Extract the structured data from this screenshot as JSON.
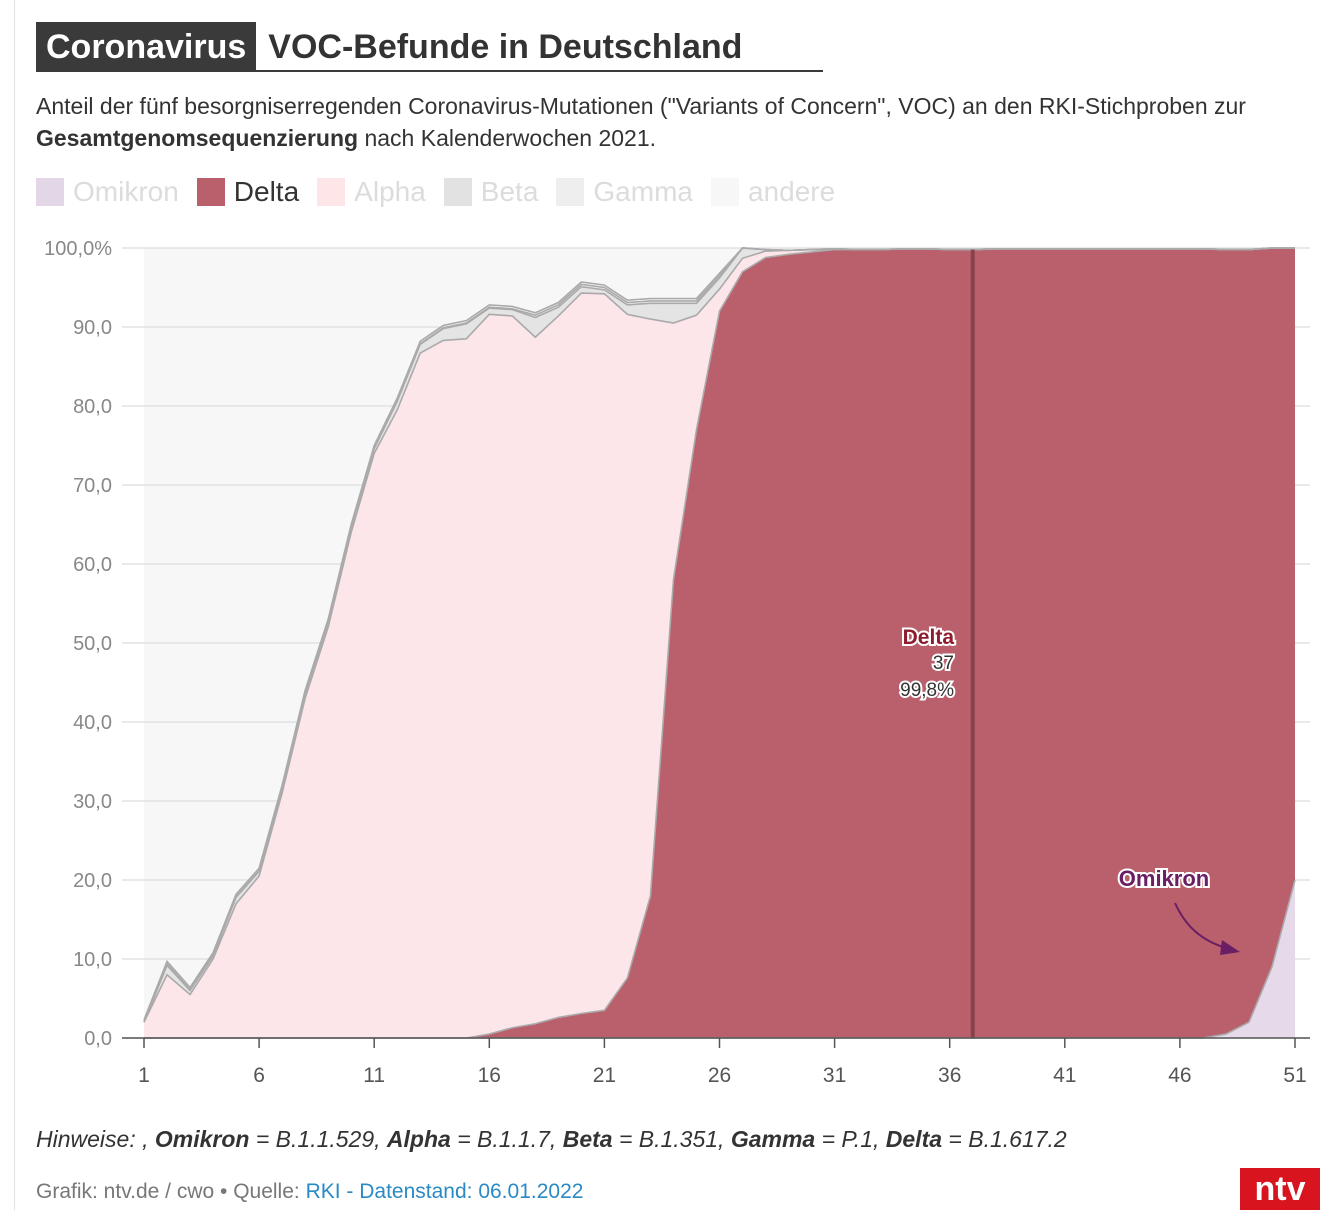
{
  "header": {
    "tag": "Coronavirus",
    "title": "VOC-Befunde in Deutschland",
    "subtitle_part1": "Anteil der fünf besorgniserregenden Coronavirus-Mutationen (\"Variants of Concern\", VOC) an den RKI-Stichproben zur ",
    "subtitle_bold": "Gesamtgenomsequenzierung",
    "subtitle_part2": " nach Kalenderwochen 2021."
  },
  "legend": [
    {
      "label": "Omikron",
      "color": "#e3d6e6",
      "active": false
    },
    {
      "label": "Delta",
      "color": "#b9606c",
      "active": true
    },
    {
      "label": "Alpha",
      "color": "#fde5e8",
      "active": false
    },
    {
      "label": "Beta",
      "color": "#e2e2e2",
      "active": false
    },
    {
      "label": "Gamma",
      "color": "#eeeeee",
      "active": false
    },
    {
      "label": "andere",
      "color": "#f7f7f7",
      "active": false
    }
  ],
  "colors": {
    "delta": "#b9606c",
    "omikron": "#e6d9ea",
    "alpha": "#fde6e9",
    "beta": "#e4e4e4",
    "gamma": "#eeeeee",
    "andere": "#f7f7f7",
    "outline": "#aaaaaa",
    "marker": "#7d3b45",
    "delta_label": "#8c1c2e",
    "omikron_label": "#6a1e64"
  },
  "chart_data": {
    "type": "area",
    "stacked": true,
    "x": [
      1,
      2,
      3,
      4,
      5,
      6,
      7,
      8,
      9,
      10,
      11,
      12,
      13,
      14,
      15,
      16,
      17,
      18,
      19,
      20,
      21,
      22,
      23,
      24,
      25,
      26,
      27,
      28,
      29,
      30,
      31,
      32,
      33,
      34,
      35,
      36,
      37,
      38,
      39,
      40,
      41,
      42,
      43,
      44,
      45,
      46,
      47,
      48,
      49,
      50,
      51
    ],
    "xticks": [
      1,
      6,
      11,
      16,
      21,
      26,
      31,
      36,
      41,
      46,
      51
    ],
    "ylim": [
      0,
      100
    ],
    "yticks": [
      "0,0",
      "10,0",
      "20,0",
      "30,0",
      "40,0",
      "50,0",
      "60,0",
      "70,0",
      "80,0",
      "90,0",
      "100,0%"
    ],
    "series": [
      {
        "name": "Omikron",
        "values": [
          0,
          0,
          0,
          0,
          0,
          0,
          0,
          0,
          0,
          0,
          0,
          0,
          0,
          0,
          0,
          0,
          0,
          0,
          0,
          0,
          0,
          0,
          0,
          0,
          0,
          0,
          0,
          0,
          0,
          0,
          0,
          0,
          0,
          0,
          0,
          0,
          0,
          0,
          0,
          0,
          0,
          0,
          0,
          0,
          0,
          0,
          0,
          0.5,
          2,
          9,
          20
        ]
      },
      {
        "name": "Delta",
        "values": [
          0,
          0,
          0,
          0,
          0,
          0,
          0,
          0,
          0,
          0,
          0,
          0,
          0,
          0,
          0,
          0.5,
          1.3,
          1.8,
          2.6,
          3.1,
          3.5,
          7.6,
          18,
          58,
          77,
          92,
          97,
          98.8,
          99.2,
          99.5,
          99.8,
          99.8,
          99.8,
          99.9,
          99.9,
          99.8,
          99.8,
          99.9,
          99.9,
          99.9,
          99.9,
          99.9,
          99.9,
          99.9,
          99.9,
          99.9,
          99.9,
          99.3,
          97.8,
          91,
          80
        ]
      },
      {
        "name": "Alpha",
        "values": [
          2,
          8,
          5.5,
          10,
          17,
          20.5,
          31,
          43,
          52,
          64,
          74,
          79.5,
          86.7,
          88.3,
          88.5,
          91.1,
          90.1,
          86.9,
          88.8,
          91.2,
          90.7,
          84,
          73,
          32.5,
          14.5,
          2.8,
          1.7,
          0.8,
          0.5,
          0.3,
          0.1,
          0,
          0,
          0,
          0,
          0,
          0,
          0,
          0,
          0,
          0,
          0,
          0,
          0,
          0,
          0,
          0,
          0,
          0,
          0,
          0
        ]
      },
      {
        "name": "Beta",
        "values": [
          0,
          1.2,
          0.5,
          0.4,
          0.8,
          0.6,
          0.6,
          0.6,
          0.6,
          0.6,
          0.6,
          1.1,
          1.1,
          1.5,
          1.9,
          0.8,
          0.8,
          2.5,
          1.1,
          0.8,
          0.5,
          1.2,
          2,
          2.5,
          1.5,
          1.4,
          1.5,
          0.2,
          0,
          0,
          0,
          0,
          0,
          0,
          0,
          0,
          0,
          0,
          0,
          0,
          0,
          0,
          0,
          0,
          0,
          0,
          0,
          0,
          0,
          0,
          0
        ]
      },
      {
        "name": "Gamma",
        "values": [
          0,
          0.2,
          0.1,
          0.1,
          0.1,
          0.1,
          0.1,
          0.1,
          0.1,
          0.1,
          0.1,
          0.1,
          0.1,
          0.1,
          0.1,
          0.1,
          0.1,
          0.3,
          0.3,
          0.3,
          0.3,
          0.3,
          0.3,
          0.3,
          0.3,
          0.3,
          0.3,
          0,
          0,
          0,
          0,
          0,
          0,
          0,
          0,
          0,
          0,
          0,
          0,
          0,
          0,
          0,
          0,
          0,
          0,
          0,
          0,
          0,
          0,
          0,
          0
        ]
      },
      {
        "name": "andere",
        "values": [
          0.3,
          0.3,
          0.3,
          0.3,
          0.3,
          0.3,
          0.3,
          0.3,
          0.3,
          0.3,
          0.3,
          0.3,
          0.3,
          0.3,
          0.3,
          0.3,
          0.3,
          0.3,
          0.3,
          0.3,
          0.3,
          0.3,
          0.3,
          0.3,
          0.3,
          0.3,
          0.3,
          0,
          0,
          0,
          0,
          0,
          0,
          0,
          0,
          0,
          0,
          0,
          0,
          0,
          0,
          0,
          0,
          0,
          0,
          0,
          0,
          0,
          0,
          0,
          0
        ]
      }
    ],
    "marker": {
      "x": 37,
      "series": "Delta",
      "label": "Delta",
      "week": "37",
      "value": "99,8%"
    },
    "annotation": {
      "label": "Omikron",
      "points_to_x": 50
    }
  },
  "footer": {
    "notes_prefix": "Hinweise: , ",
    "notes": [
      {
        "name": "Omikron",
        "code": "B.1.1.529"
      },
      {
        "name": "Alpha",
        "code": "B.1.1.7"
      },
      {
        "name": "Beta",
        "code": "B.1.351"
      },
      {
        "name": "Gamma",
        "code": "P.1"
      },
      {
        "name": "Delta",
        "code": "B.1.617.2"
      }
    ],
    "credit": "Grafik: ntv.de / cwo • Quelle: ",
    "source_link": "RKI - Datenstand: 06.01.2022",
    "logo": "ntv"
  }
}
